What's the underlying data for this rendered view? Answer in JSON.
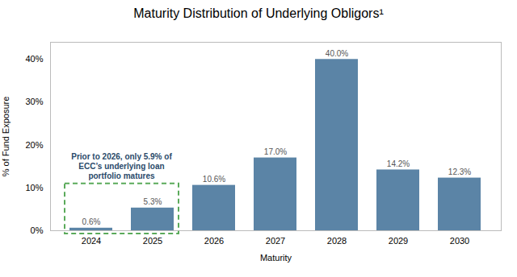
{
  "chart_data": {
    "type": "bar",
    "title": "Maturity Distribution of Underlying Obligors¹",
    "xlabel": "Maturity",
    "ylabel": "% of Fund Exposure",
    "categories": [
      "2024",
      "2025",
      "2026",
      "2027",
      "2028",
      "2029",
      "2030"
    ],
    "values": [
      0.6,
      5.3,
      10.6,
      17.0,
      40.0,
      14.2,
      12.3
    ],
    "value_labels": [
      "0.6%",
      "5.3%",
      "10.6%",
      "17.0%",
      "40.0%",
      "14.2%",
      "12.3%"
    ],
    "data_labels": true,
    "color": "#5b84a6",
    "ylim": [
      0,
      44
    ],
    "yticks": [
      {
        "value": 0,
        "label": "0%"
      },
      {
        "value": 10,
        "label": "10%"
      },
      {
        "value": 20,
        "label": "20%"
      },
      {
        "value": 30,
        "label": "30%"
      },
      {
        "value": 40,
        "label": "40%"
      }
    ],
    "grid": false,
    "annotation": {
      "text": "Prior to 2026, only 5.9% of\nECC’s underlying loan\nportfolio matures",
      "categories": [
        "2024",
        "2025"
      ],
      "color": "#5aaa5a"
    }
  }
}
